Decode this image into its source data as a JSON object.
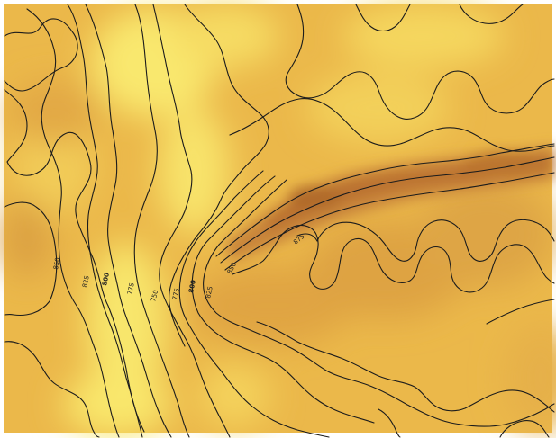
{
  "map": {
    "type": "contour-elevation-raster",
    "colors": {
      "low": "#f7e36a",
      "mid": "#eab548",
      "high": "#d89a3c",
      "ridge": "#c07a30",
      "line": "#1c1c1c",
      "frame": "#ffffff"
    },
    "contour_labels": [
      {
        "text": "850"
      },
      {
        "text": "825"
      },
      {
        "text": "800"
      },
      {
        "text": "775"
      },
      {
        "text": "750"
      },
      {
        "text": "775"
      },
      {
        "text": "800"
      },
      {
        "text": "825"
      },
      {
        "text": "850"
      },
      {
        "text": "875"
      }
    ]
  }
}
